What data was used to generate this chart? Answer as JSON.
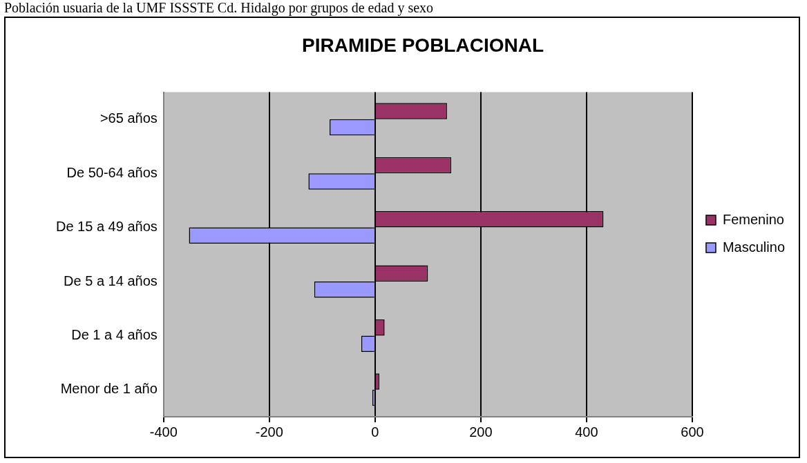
{
  "chart_data": {
    "type": "bar",
    "orientation": "horizontal",
    "title": "PIRAMIDE POBLACIONAL",
    "annotations": [
      "Población usuaria de la UMF ISSSTE Cd. Hidalgo por grupos de edad y sexo"
    ],
    "categories": [
      ">65 años",
      "De 50-64 años",
      "De 15 a 49 años",
      "De 5 a 14 años",
      "De 1 a 4 años",
      "Menor de 1 año"
    ],
    "series": [
      {
        "name": "Femenino",
        "color": "#993366",
        "values": [
          136,
          144,
          432,
          100,
          18,
          8
        ]
      },
      {
        "name": "Masculino",
        "color": "#9999ff",
        "values": [
          -86,
          -126,
          -352,
          -115,
          -26,
          -5
        ]
      }
    ],
    "xlim": [
      -400,
      600
    ],
    "xticks": [
      -400,
      -200,
      0,
      200,
      400,
      600
    ],
    "grid": "x",
    "legend": "right"
  }
}
